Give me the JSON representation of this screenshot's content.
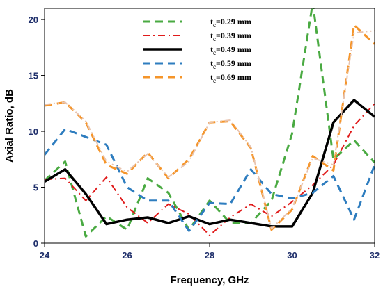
{
  "chart_data": {
    "type": "line",
    "xlabel": "Frequency, GHz",
    "ylabel": "Axial Ratio, dB",
    "xlim": [
      24,
      32
    ],
    "ylim": [
      0,
      21
    ],
    "xticks": [
      24,
      26,
      28,
      30,
      32
    ],
    "yticks": [
      0,
      5,
      10,
      15,
      20
    ],
    "grid": false,
    "legend_position": "top-center",
    "series": [
      {
        "name_prefix": "t",
        "name_sub": "c",
        "name_suffix": "=0.29 mm",
        "color": "#4aaa42",
        "dash": "dash",
        "width": 3,
        "x": [
          24,
          24.5,
          25,
          25.5,
          26,
          26.5,
          27,
          27.5,
          28,
          28.5,
          29,
          29.5,
          30,
          30.5,
          31,
          31.5,
          32
        ],
        "y": [
          5.6,
          7.3,
          0.6,
          2.4,
          1.2,
          5.8,
          4.5,
          1.2,
          3.8,
          1.8,
          1.8,
          3.8,
          9.8,
          21.5,
          7.5,
          9.2,
          7.2
        ]
      },
      {
        "name_prefix": "t",
        "name_sub": "c",
        "name_suffix": "=0.39 mm",
        "color": "#e01b1b",
        "dash": "dashdot",
        "width": 2,
        "x": [
          24,
          24.5,
          25,
          25.5,
          26,
          26.5,
          27,
          27.5,
          28,
          28.5,
          29,
          29.5,
          30,
          30.5,
          31,
          31.5,
          32
        ],
        "y": [
          5.7,
          5.8,
          3.8,
          5.9,
          3.2,
          1.8,
          3.5,
          2.6,
          0.7,
          2.3,
          3.5,
          2.4,
          3.7,
          5.2,
          7.0,
          10.5,
          12.5
        ]
      },
      {
        "name_prefix": "t",
        "name_sub": "c",
        "name_suffix": "=0.49 mm",
        "color": "#000000",
        "dash": "solid",
        "width": 3.5,
        "x": [
          24,
          24.5,
          25,
          25.5,
          26,
          26.5,
          27,
          27.5,
          28,
          28.5,
          29,
          29.5,
          30,
          30.5,
          31,
          31.5,
          32
        ],
        "y": [
          5.5,
          6.6,
          4.4,
          1.7,
          2.1,
          2.3,
          1.8,
          2.4,
          1.7,
          2.1,
          1.8,
          1.5,
          1.5,
          4.5,
          10.8,
          12.8,
          11.3
        ]
      },
      {
        "name_prefix": "t",
        "name_sub": "c",
        "name_suffix": "=0.59 mm",
        "color": "#2e7dbf",
        "dash": "dash",
        "width": 3,
        "x": [
          24,
          24.5,
          25,
          25.5,
          26,
          26.5,
          27,
          27.5,
          28,
          28.5,
          29,
          29.5,
          30,
          30.5,
          31,
          31.5,
          32
        ],
        "y": [
          7.9,
          10.2,
          9.5,
          8.8,
          5.0,
          3.8,
          3.8,
          1.1,
          3.6,
          3.5,
          6.6,
          4.4,
          4.0,
          4.5,
          6.0,
          2.1,
          7.0
        ]
      },
      {
        "name_prefix": "t",
        "name_sub": "c",
        "name_suffix": "=0.69 mm",
        "color": "#f5952a",
        "dash": "dash",
        "width": 3,
        "x": [
          24,
          24.5,
          25,
          25.5,
          26,
          26.5,
          27,
          27.5,
          28,
          28.5,
          29,
          29.5,
          30,
          30.5,
          31,
          31.5,
          32
        ],
        "y": [
          12.3,
          12.6,
          10.8,
          7.0,
          6.2,
          8.1,
          5.8,
          7.5,
          10.8,
          10.9,
          8.5,
          1.2,
          3.0,
          7.8,
          6.5,
          19.5,
          17.8
        ]
      },
      {
        "name": "",
        "color": "#e8c4b0",
        "dash": "dashdotdot",
        "width": 2,
        "x": [
          24,
          24.5,
          25,
          25.5,
          26,
          26.5,
          27,
          27.5,
          28,
          28.5,
          29,
          29.5,
          30,
          30.5,
          31,
          31.5,
          32
        ],
        "y": [
          12.4,
          12.6,
          10.9,
          7.3,
          6.4,
          8.0,
          5.9,
          7.3,
          10.8,
          11.0,
          8.6,
          1.3,
          3.1,
          7.6,
          7.0,
          18.8,
          19.0
        ]
      }
    ]
  }
}
